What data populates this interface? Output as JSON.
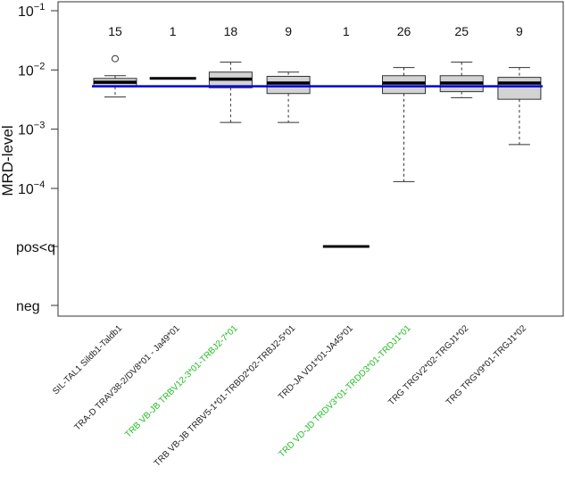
{
  "chart_data": {
    "type": "box",
    "ylabel": "MRD-level",
    "xlabel": "",
    "yscale": "log",
    "ylim": [
      0.0001,
      0.1
    ],
    "y_ticks": [
      {
        "value": 0.1,
        "base": "10",
        "exp": "−1"
      },
      {
        "value": 0.01,
        "base": "10",
        "exp": "−2"
      },
      {
        "value": 0.001,
        "base": "10",
        "exp": "−3"
      },
      {
        "value": 0.0001,
        "base": "10",
        "exp": "−4"
      }
    ],
    "extra_levels": [
      "pos<q",
      "neg"
    ],
    "reference_line": {
      "value": 0.0053,
      "color": "#0000dd"
    },
    "box_fill": "#d3d3d3",
    "categories": [
      {
        "label": "SIL-TAL1 Sildb1-Taldb1",
        "color": "#222222",
        "n": "15",
        "min": 0.0035,
        "q1": 0.0052,
        "median": 0.0062,
        "q3": 0.0072,
        "max": 0.008,
        "outliers": [
          0.0155
        ]
      },
      {
        "label": "TRA-D TRAV38-2/DV8*01 - Ja49*01",
        "color": "#222222",
        "n": "1",
        "min": 0.0072,
        "q1": 0.0072,
        "median": 0.0072,
        "q3": 0.0072,
        "max": 0.0072,
        "outliers": []
      },
      {
        "label": "TRB VB-JB TRBV12-3*01-TRBJ2-7*01",
        "color": "#22bb22",
        "n": "18",
        "min": 0.0013,
        "q1": 0.005,
        "median": 0.007,
        "q3": 0.0092,
        "max": 0.0135,
        "outliers": []
      },
      {
        "label": "TRB VB-JB TRBV5-1*01-TRBD2*02-TRBJ2-5*01",
        "color": "#222222",
        "n": "9",
        "min": 0.0013,
        "q1": 0.004,
        "median": 0.006,
        "q3": 0.0078,
        "max": 0.0092,
        "outliers": []
      },
      {
        "label": "TRD-JA VD1*01-JA45*01",
        "color": "#222222",
        "n": "1",
        "pos_lt_q": true,
        "outliers": []
      },
      {
        "label": "TRD VD-JD TRDV3*01-TRDD3*01-TRDJ1*01",
        "color": "#22bb22",
        "n": "26",
        "min": 0.00013,
        "q1": 0.004,
        "median": 0.006,
        "q3": 0.008,
        "max": 0.011,
        "outliers": []
      },
      {
        "label": "TRG TRGV2*02-TRGJ1*02",
        "color": "#222222",
        "n": "25",
        "min": 0.0034,
        "q1": 0.0043,
        "median": 0.006,
        "q3": 0.008,
        "max": 0.0135,
        "outliers": []
      },
      {
        "label": "TRG TRGV9*01-TRGJ1*02",
        "color": "#222222",
        "n": "9",
        "min": 0.00055,
        "q1": 0.0032,
        "median": 0.006,
        "q3": 0.0075,
        "max": 0.011,
        "outliers": []
      }
    ]
  }
}
